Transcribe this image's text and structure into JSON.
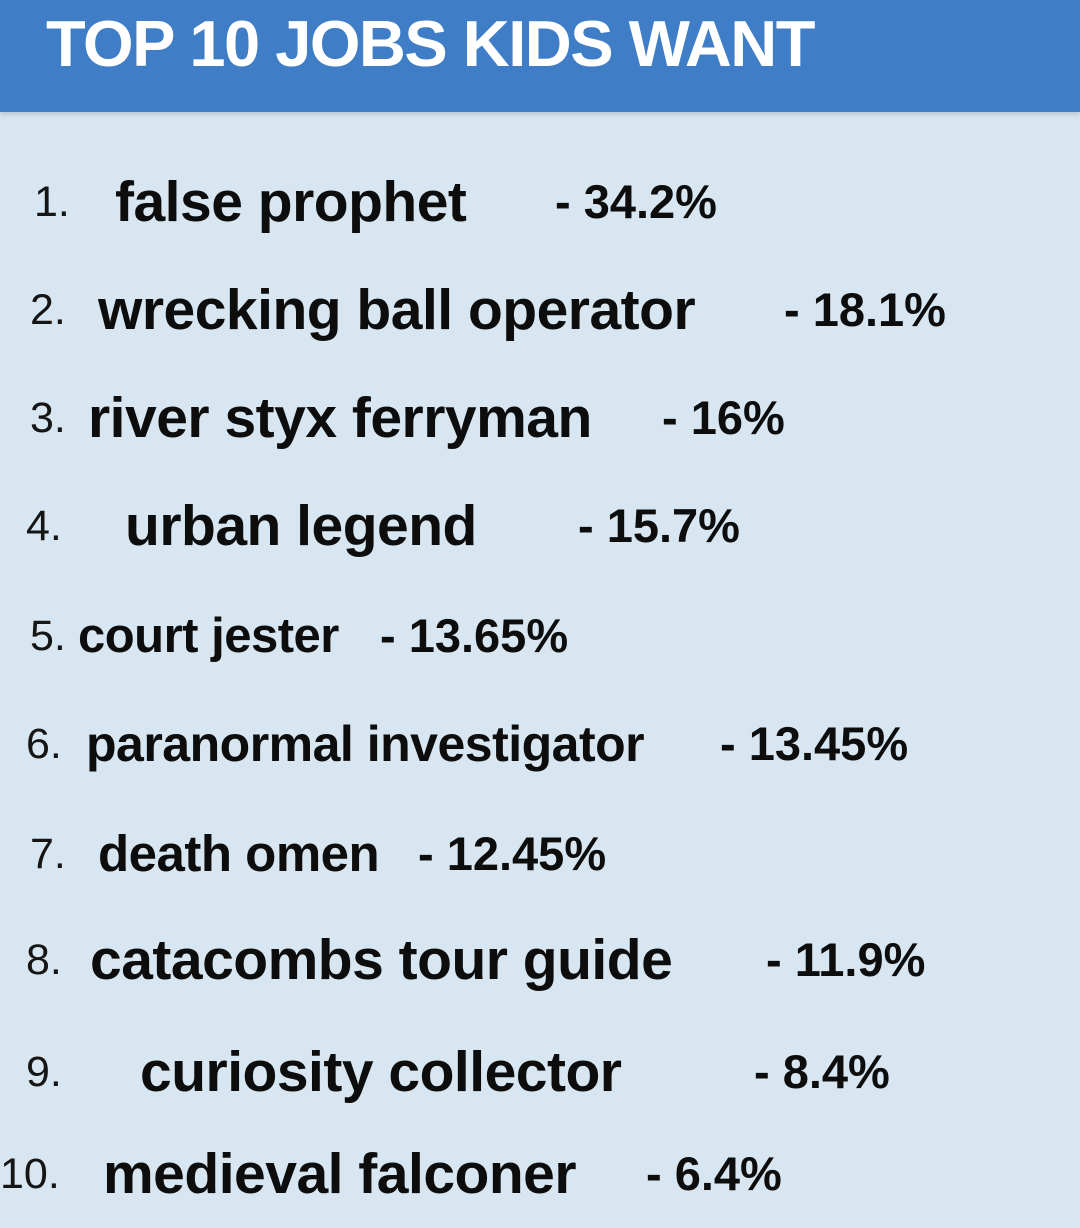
{
  "header": {
    "title": "TOP 10 JOBS KIDS WANT",
    "background_color": "#3f7ec6",
    "text_color": "#ffffff"
  },
  "page": {
    "background_color": "#d7e6f0"
  },
  "jobs": [
    {
      "number": "1.",
      "job": "false prophet",
      "percent": "- 34.2%",
      "value": 34.2
    },
    {
      "number": "2.",
      "job": "wrecking ball operator",
      "percent": "- 18.1%",
      "value": 18.1
    },
    {
      "number": "3.",
      "job": "river styx ferryman",
      "percent": "- 16%",
      "value": 16
    },
    {
      "number": "4.",
      "job": "urban legend",
      "percent": "- 15.7%",
      "value": 15.7
    },
    {
      "number": "5.",
      "job": "court jester",
      "percent": "- 13.65%",
      "value": 13.65
    },
    {
      "number": "6.",
      "job": "paranormal investigator",
      "percent": "- 13.45%",
      "value": 13.45
    },
    {
      "number": "7.",
      "job": "death omen",
      "percent": "- 12.45%",
      "value": 12.45
    },
    {
      "number": "8.",
      "job": "catacombs tour guide",
      "percent": "- 11.9%",
      "value": 11.9
    },
    {
      "number": "9.",
      "job": "curiosity collector",
      "percent": "- 8.4%",
      "value": 8.4
    },
    {
      "number": "10.",
      "job": "medieval falconer",
      "percent": "- 6.4%",
      "value": 6.4
    }
  ]
}
